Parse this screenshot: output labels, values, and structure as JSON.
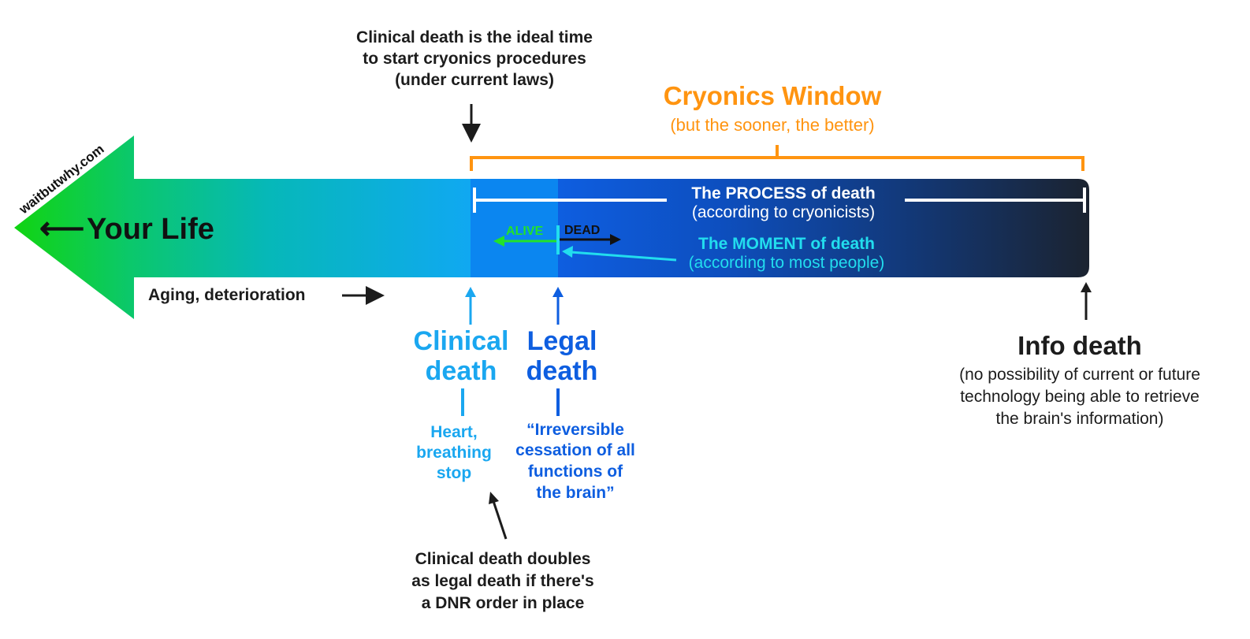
{
  "watermark": "waitbutwhy.com",
  "arrow": {
    "label_arrow": "⟵",
    "label": "Your Life",
    "aging": "Aging, deterioration"
  },
  "top_note": {
    "line1": "Clinical death is the ideal time",
    "line2": "to start cryonics procedures",
    "line3": "(under current laws)"
  },
  "cryonics_window": {
    "title": "Cryonics Window",
    "subtitle": "(but the sooner, the better)"
  },
  "process": {
    "title": "The PROCESS of death",
    "subtitle": "(according to cryonicists)"
  },
  "moment": {
    "alive": "ALIVE",
    "dead": "DEAD",
    "title": "The MOMENT of death",
    "subtitle": "(according to most people)"
  },
  "clinical": {
    "line1": "Clinical",
    "line2": "death",
    "desc1": "Heart,",
    "desc2": "breathing",
    "desc3": "stop"
  },
  "legal": {
    "line1": "Legal",
    "line2": "death",
    "desc1": "“Irreversible",
    "desc2": "cessation of all",
    "desc3": "functions of",
    "desc4": "the brain”"
  },
  "bottom_note": {
    "line1": "Clinical death doubles",
    "line2": "as legal death if there's",
    "line3": "a DNR order in place"
  },
  "info_death": {
    "title": "Info death",
    "desc1": "(no possibility of current or future",
    "desc2": "technology being able to retrieve",
    "desc3": "the brain's information)"
  },
  "colors": {
    "green": "#10d010",
    "light_blue": "#1aa7f0",
    "mid_blue": "#0a82f0",
    "dark_blue": "#0e5ee0",
    "navy": "#1a2a3a",
    "orange": "#ff9410",
    "cyan": "#22ddee",
    "text": "#1c1c1c"
  }
}
